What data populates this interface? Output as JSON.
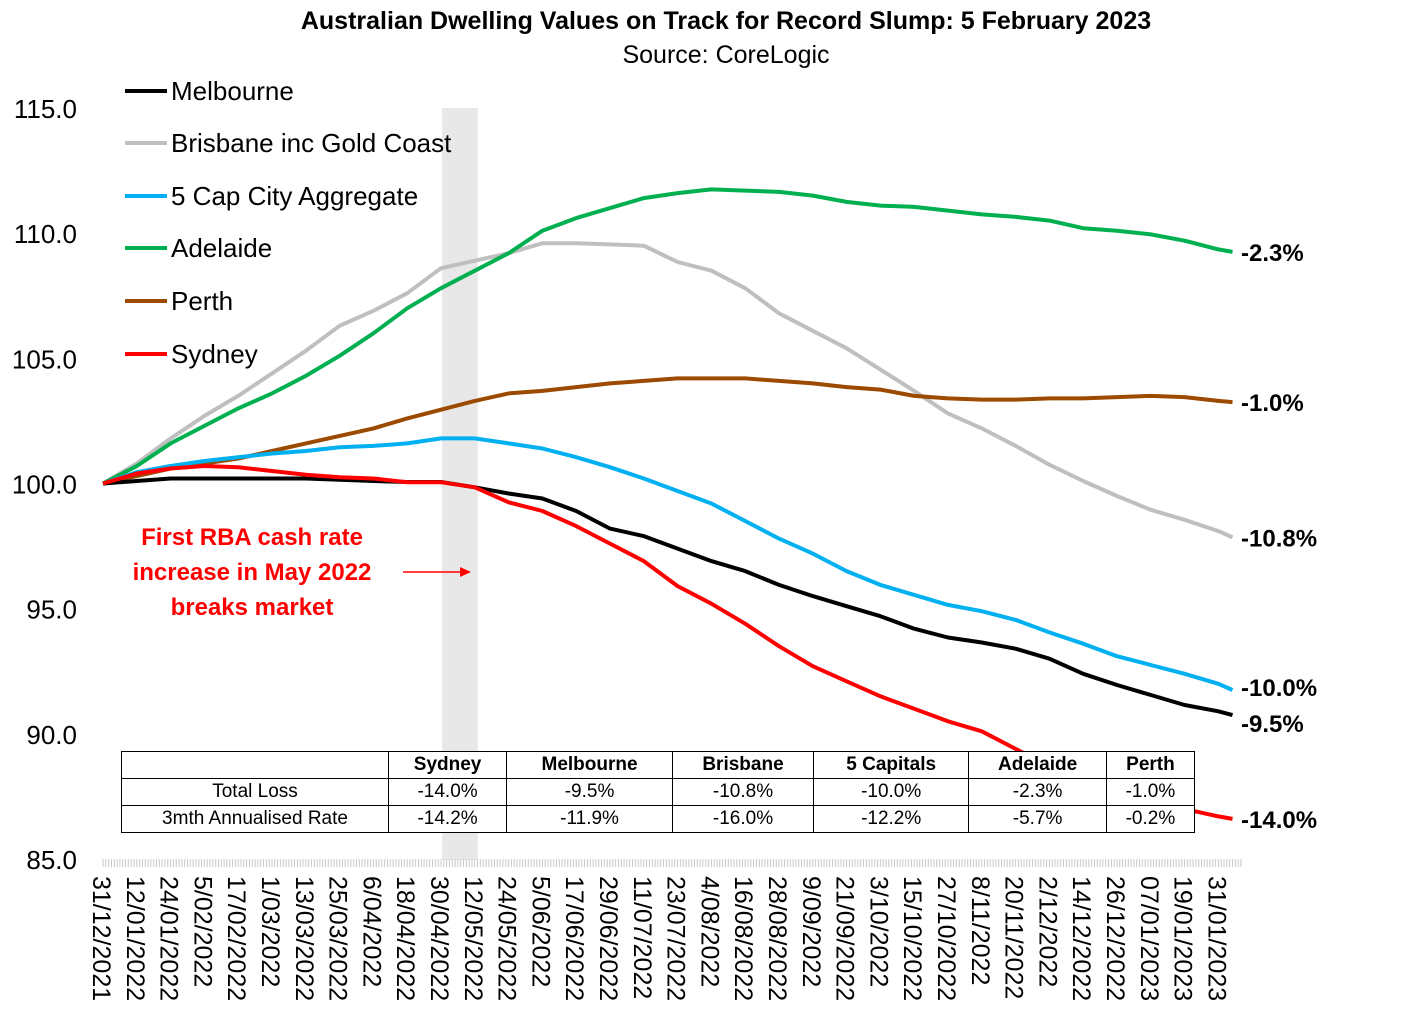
{
  "chart_data": {
    "type": "line",
    "title": "Australian Dwelling Values on Track for Record Slump: 5 February 2023",
    "subtitle": "Source: CoreLogic",
    "xlabel": "",
    "ylabel": "",
    "ylim": [
      85,
      115
    ],
    "yticks": [
      "115.0",
      "110.0",
      "105.0",
      "100.0",
      "95.0",
      "90.0",
      "85.0"
    ],
    "grid": false,
    "legend_position": "top-left",
    "x_tick_labels": [
      "31/12/2021",
      "12/01/2022",
      "24/01/2022",
      "5/02/2022",
      "17/02/2022",
      "1/03/2022",
      "13/03/2022",
      "25/03/2022",
      "6/04/2022",
      "18/04/2022",
      "30/04/2022",
      "12/05/2022",
      "24/05/2022",
      "5/06/2022",
      "17/06/2022",
      "29/06/2022",
      "11/07/2022",
      "23/07/2022",
      "4/08/2022",
      "16/08/2022",
      "28/08/2022",
      "9/09/2022",
      "21/09/2022",
      "3/10/2022",
      "15/10/2022",
      "27/10/2022",
      "8/11/2022",
      "20/11/2022",
      "2/12/2022",
      "14/12/2022",
      "26/12/2022",
      "07/01/2023",
      "19/01/2023",
      "31/01/2023"
    ],
    "x": [
      "31/12/2021",
      "12/01/2022",
      "24/01/2022",
      "5/02/2022",
      "17/02/2022",
      "1/03/2022",
      "13/03/2022",
      "25/03/2022",
      "6/04/2022",
      "18/04/2022",
      "30/04/2022",
      "12/05/2022",
      "24/05/2022",
      "5/06/2022",
      "17/06/2022",
      "29/06/2022",
      "11/07/2022",
      "23/07/2022",
      "4/08/2022",
      "16/08/2022",
      "28/08/2022",
      "9/09/2022",
      "21/09/2022",
      "3/10/2022",
      "15/10/2022",
      "27/10/2022",
      "8/11/2022",
      "20/11/2022",
      "2/12/2022",
      "14/12/2022",
      "26/12/2022",
      "07/01/2023",
      "19/01/2023",
      "31/01/2023",
      "5/02/2023"
    ],
    "series": [
      {
        "name": "Melbourne",
        "color": "#000000",
        "end_label": "-9.5%",
        "values": [
          100,
          100.1,
          100.2,
          100.2,
          100.2,
          100.2,
          100.2,
          100.15,
          100.1,
          100.06,
          100.06,
          99.85,
          99.6,
          99.4,
          98.9,
          98.2,
          97.9,
          97.4,
          96.9,
          96.5,
          95.95,
          95.5,
          95.1,
          94.7,
          94.2,
          93.85,
          93.65,
          93.4,
          93.0,
          92.4,
          91.95,
          91.55,
          91.15,
          90.9,
          90.75
        ]
      },
      {
        "name": "Brisbane inc Gold Coast",
        "color": "#BFBFBF",
        "end_label": "-10.8%",
        "values": [
          100,
          100.8,
          101.8,
          102.7,
          103.5,
          104.4,
          105.3,
          106.3,
          106.9,
          107.6,
          108.6,
          108.9,
          109.2,
          109.6,
          109.6,
          109.55,
          109.5,
          108.85,
          108.5,
          107.8,
          106.8,
          106.1,
          105.4,
          104.55,
          103.7,
          102.8,
          102.2,
          101.5,
          100.75,
          100.1,
          99.5,
          98.95,
          98.55,
          98.1,
          97.85
        ]
      },
      {
        "name": "5 Cap City Aggregate",
        "color": "#00B0F0",
        "end_label": "-10.0%",
        "values": [
          100,
          100.45,
          100.7,
          100.9,
          101.05,
          101.2,
          101.3,
          101.45,
          101.5,
          101.6,
          101.8,
          101.8,
          101.6,
          101.4,
          101.05,
          100.65,
          100.2,
          99.7,
          99.2,
          98.5,
          97.8,
          97.2,
          96.5,
          95.95,
          95.55,
          95.15,
          94.9,
          94.55,
          94.05,
          93.6,
          93.1,
          92.75,
          92.4,
          92.0,
          91.75
        ]
      },
      {
        "name": "Adelaide",
        "color": "#00B050",
        "end_label": "-2.3%",
        "values": [
          100,
          100.7,
          101.6,
          102.3,
          103.0,
          103.6,
          104.3,
          105.1,
          106.0,
          107.0,
          107.8,
          108.5,
          109.2,
          110.1,
          110.6,
          111.0,
          111.4,
          111.6,
          111.75,
          111.7,
          111.65,
          111.5,
          111.25,
          111.1,
          111.05,
          110.9,
          110.75,
          110.65,
          110.5,
          110.2,
          110.1,
          109.95,
          109.7,
          109.35,
          109.25
        ]
      },
      {
        "name": "Perth",
        "color": "#9C4A00",
        "end_label": "-1.0%",
        "values": [
          100,
          100.3,
          100.6,
          100.8,
          101.0,
          101.3,
          101.6,
          101.9,
          102.2,
          102.6,
          102.95,
          103.3,
          103.6,
          103.7,
          103.85,
          104.0,
          104.1,
          104.2,
          104.2,
          104.2,
          104.1,
          104.0,
          103.85,
          103.75,
          103.5,
          103.4,
          103.35,
          103.35,
          103.4,
          103.4,
          103.45,
          103.5,
          103.45,
          103.3,
          103.25
        ]
      },
      {
        "name": "Sydney",
        "color": "#FF0000",
        "end_label": "-14.0%",
        "values": [
          100,
          100.4,
          100.6,
          100.7,
          100.65,
          100.5,
          100.35,
          100.25,
          100.2,
          100.05,
          100.05,
          99.85,
          99.25,
          98.9,
          98.3,
          97.6,
          96.9,
          95.9,
          95.2,
          94.4,
          93.5,
          92.7,
          92.1,
          91.5,
          91.0,
          90.5,
          90.1,
          89.4,
          88.7,
          88.2,
          87.8,
          87.4,
          87.0,
          86.7,
          86.6
        ]
      }
    ],
    "shaded_period": {
      "from": "30/04/2022",
      "to": "12/05/2022"
    },
    "annotation": {
      "lines": [
        "First RBA cash rate",
        "increase in May 2022",
        "breaks market"
      ],
      "color": "#FF0000"
    },
    "table": {
      "columns": [
        "",
        "Sydney",
        "Melbourne",
        "Brisbane",
        "5 Capitals",
        "Adelaide",
        "Perth"
      ],
      "rows": [
        {
          "label": "Total Loss",
          "values": [
            "-14.0%",
            "-9.5%",
            "-10.8%",
            "-10.0%",
            "-2.3%",
            "-1.0%"
          ]
        },
        {
          "label": "3mth Annualised Rate",
          "values": [
            "-14.2%",
            "-11.9%",
            "-16.0%",
            "-12.2%",
            "-5.7%",
            "-0.2%"
          ]
        }
      ]
    }
  }
}
